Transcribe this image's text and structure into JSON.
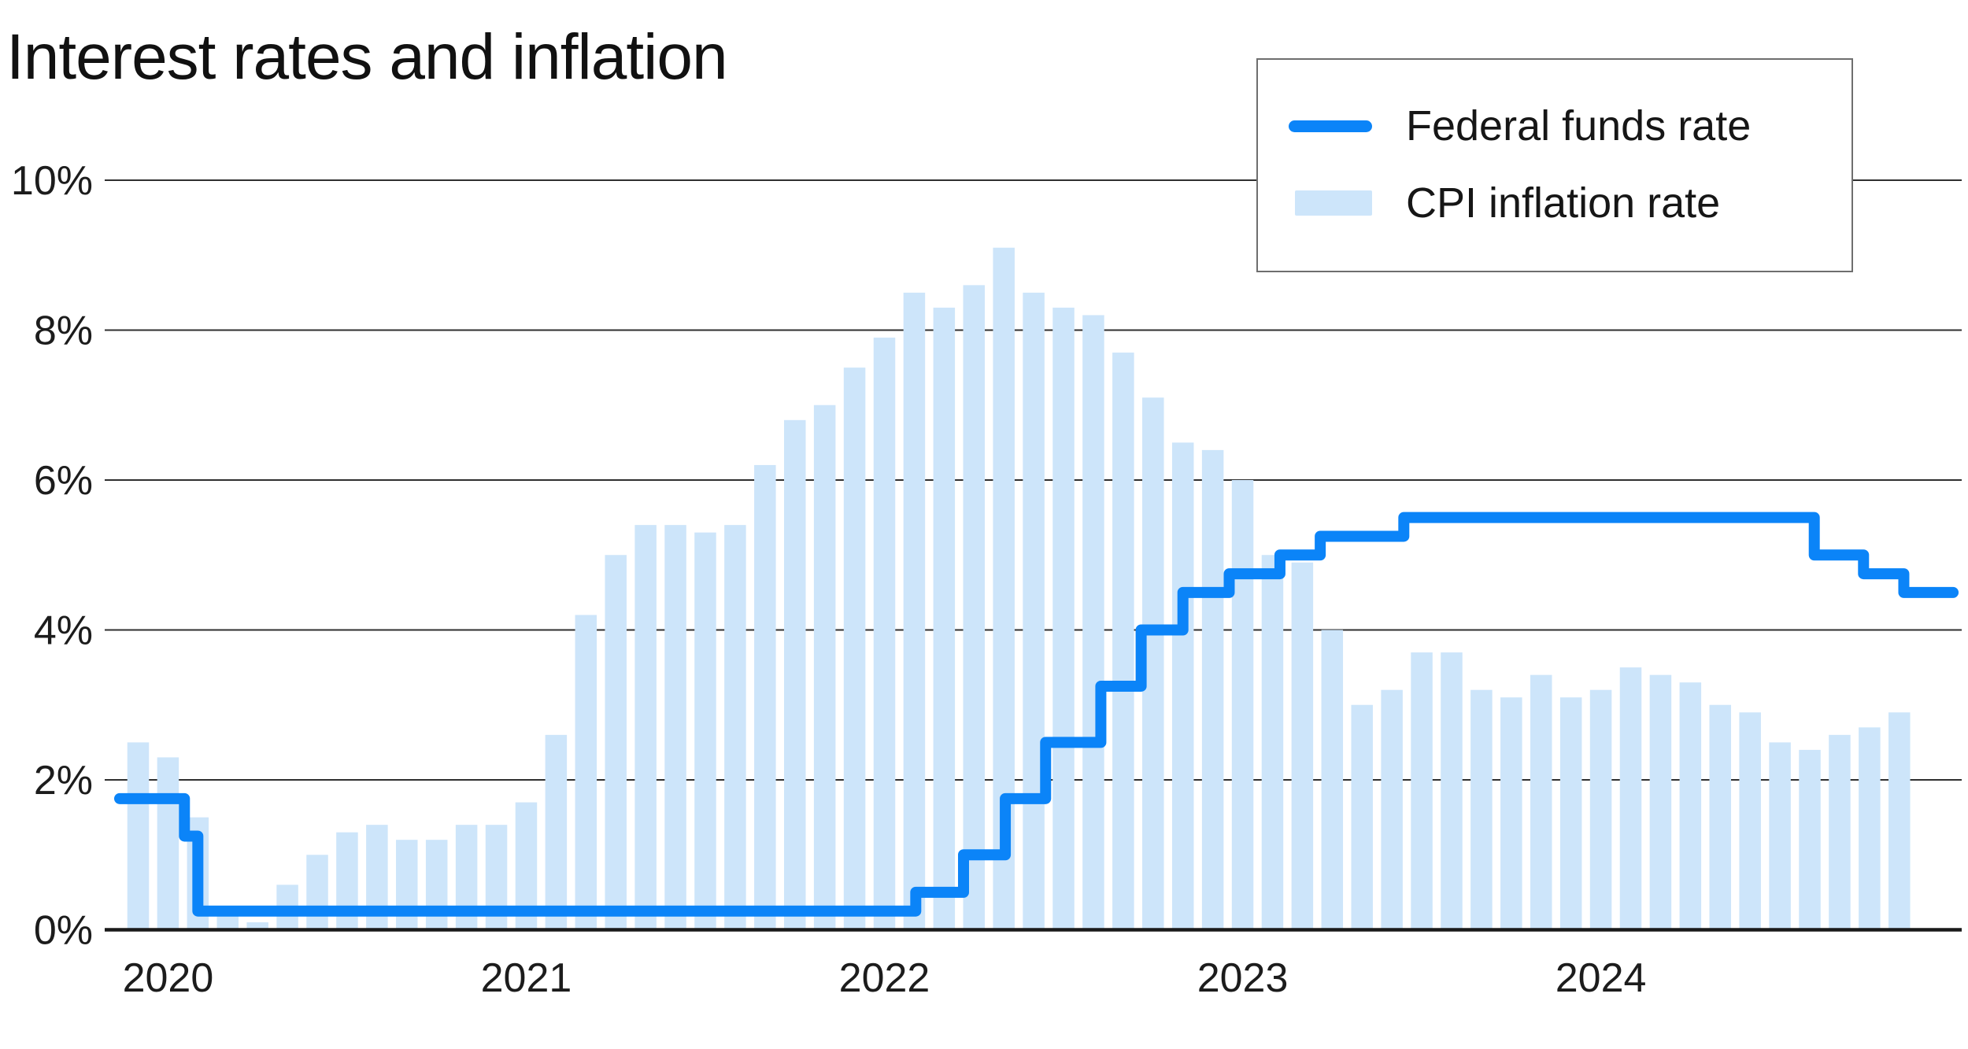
{
  "chart_data": {
    "type": "combo",
    "title": "Interest rates and inflation",
    "ylim": [
      0,
      10
    ],
    "grid": "horizontal",
    "legend_position": "top-right",
    "y_ticks": [
      {
        "label": "10%",
        "value": 10
      },
      {
        "label": "8%",
        "value": 8
      },
      {
        "label": "6%",
        "value": 6
      },
      {
        "label": "4%",
        "value": 4
      },
      {
        "label": "2%",
        "value": 2
      },
      {
        "label": "0%",
        "value": 0
      }
    ],
    "x_ticks": [
      {
        "label": "2020",
        "t": 1
      },
      {
        "label": "2021",
        "t": 13
      },
      {
        "label": "2022",
        "t": 25
      },
      {
        "label": "2023",
        "t": 37
      },
      {
        "label": "2024",
        "t": 49
      }
    ],
    "axis_colors": {
      "grid": "#2f2f2f",
      "baseline": "#1a1a1a",
      "tick_text": "#1c1c1c"
    },
    "series": [
      {
        "name": "Federal funds rate",
        "type": "line",
        "style": "step",
        "color": "#0b84f8",
        "stroke_width": 14,
        "t_unit": "months since mid-Jan 2020",
        "points": [
          {
            "t": -0.62,
            "rate": 1.75
          },
          {
            "t": 1.55,
            "rate": 1.25
          },
          {
            "t": 2.0,
            "rate": 0.25
          },
          {
            "t": 26.05,
            "rate": 0.5
          },
          {
            "t": 27.65,
            "rate": 1.0
          },
          {
            "t": 29.05,
            "rate": 1.75
          },
          {
            "t": 30.4,
            "rate": 2.5
          },
          {
            "t": 32.25,
            "rate": 3.25
          },
          {
            "t": 33.6,
            "rate": 4.0
          },
          {
            "t": 35.0,
            "rate": 4.5
          },
          {
            "t": 36.55,
            "rate": 4.75
          },
          {
            "t": 38.25,
            "rate": 5.0
          },
          {
            "t": 39.6,
            "rate": 5.25
          },
          {
            "t": 42.4,
            "rate": 5.5
          },
          {
            "t": 56.15,
            "rate": 5.0
          },
          {
            "t": 57.8,
            "rate": 4.75
          },
          {
            "t": 59.15,
            "rate": 4.5
          }
        ],
        "end_t": 60.8
      },
      {
        "name": "CPI inflation rate",
        "type": "bar",
        "color": "#cde5fa",
        "start_month": "2020-01",
        "values": [
          2.5,
          2.3,
          1.5,
          0.3,
          0.1,
          0.6,
          1.0,
          1.3,
          1.4,
          1.2,
          1.2,
          1.4,
          1.4,
          1.7,
          2.6,
          4.2,
          5.0,
          5.4,
          5.4,
          5.3,
          5.4,
          6.2,
          6.8,
          7.0,
          7.5,
          7.9,
          8.5,
          8.3,
          8.6,
          9.1,
          8.5,
          8.3,
          8.2,
          7.7,
          7.1,
          6.5,
          6.4,
          6.0,
          5.0,
          4.9,
          4.0,
          3.0,
          3.2,
          3.7,
          3.7,
          3.2,
          3.1,
          3.4,
          3.1,
          3.2,
          3.5,
          3.4,
          3.3,
          3.0,
          2.9,
          2.5,
          2.4,
          2.6,
          2.7,
          2.9
        ]
      }
    ]
  }
}
